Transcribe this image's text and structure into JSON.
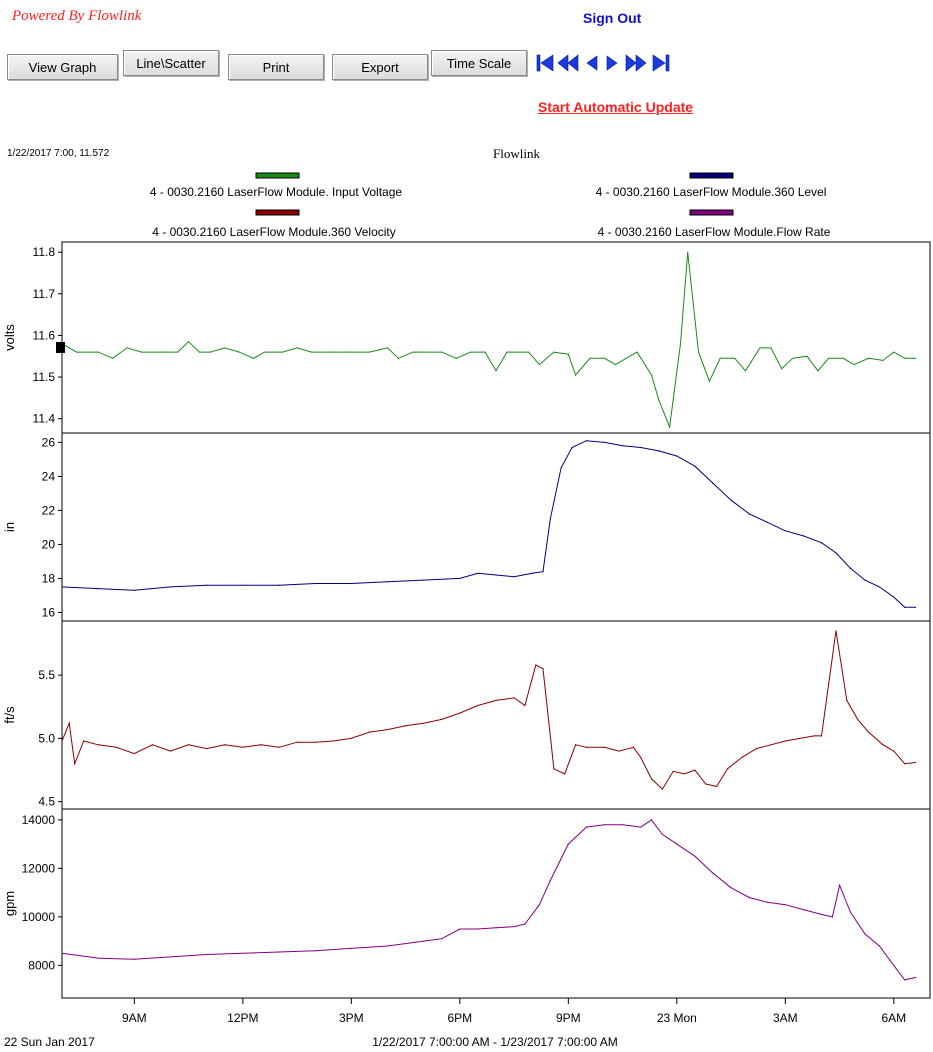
{
  "header": {
    "powered_by": "Powered By Flowlink",
    "sign_out": "Sign Out",
    "auto_update": "Start Automatic Update"
  },
  "toolbar": {
    "buttons": [
      {
        "label": "View Graph"
      },
      {
        "label": "Line\\Scatter"
      },
      {
        "label": "Print"
      },
      {
        "label": "Export"
      },
      {
        "label": "Time Scale"
      }
    ],
    "nav_icons": [
      "first-icon",
      "rewind-icon",
      "step-back-icon",
      "step-forward-icon",
      "fast-forward-icon",
      "last-icon"
    ]
  },
  "cursor_readout": "1/22/2017 7:00, 11.572",
  "chart_data": {
    "type": "line",
    "title": "Flowlink",
    "legend": [
      {
        "name": "4 - 0030.2160 LaserFlow Module. Input Voltage",
        "color": "#1a8a1a"
      },
      {
        "name": "4 - 0030.2160 LaserFlow Module.360 Level",
        "color": "#00007a"
      },
      {
        "name": "4 - 0030.2160 LaserFlow Module.360 Velocity",
        "color": "#8a0000"
      },
      {
        "name": "4 - 0030.2160 LaserFlow Module.Flow Rate",
        "color": "#800080"
      }
    ],
    "x_range": [
      "2017-01-22T07:00",
      "2017-01-23T07:00"
    ],
    "x_ticks": [
      {
        "label": "9AM",
        "hour": 9
      },
      {
        "label": "12PM",
        "hour": 12
      },
      {
        "label": "3PM",
        "hour": 15
      },
      {
        "label": "6PM",
        "hour": 18
      },
      {
        "label": "9PM",
        "hour": 21
      },
      {
        "label": "23 Mon",
        "hour": 24
      },
      {
        "label": "3AM",
        "hour": 27
      },
      {
        "label": "6AM",
        "hour": 30
      }
    ],
    "x_start_label": "22 Sun Jan 2017",
    "x_range_label": "1/22/2017 7:00:00 AM - 1/23/2017 7:00:00 AM",
    "panels": [
      {
        "name": "Input Voltage",
        "ylabel": "volts",
        "ylim": [
          11.38,
          11.81
        ],
        "yticks": [
          "11.4",
          "11.5",
          "11.6",
          "11.7",
          "11.8"
        ],
        "color": "#1a8a1a",
        "points": [
          [
            7.0,
            11.58
          ],
          [
            7.4,
            11.56
          ],
          [
            8.0,
            11.56
          ],
          [
            8.4,
            11.545
          ],
          [
            8.8,
            11.57
          ],
          [
            9.2,
            11.56
          ],
          [
            9.8,
            11.56
          ],
          [
            10.2,
            11.56
          ],
          [
            10.5,
            11.585
          ],
          [
            10.8,
            11.56
          ],
          [
            11.1,
            11.56
          ],
          [
            11.5,
            11.57
          ],
          [
            11.9,
            11.56
          ],
          [
            12.3,
            11.545
          ],
          [
            12.6,
            11.56
          ],
          [
            13.1,
            11.56
          ],
          [
            13.5,
            11.57
          ],
          [
            13.9,
            11.56
          ],
          [
            14.5,
            11.56
          ],
          [
            15.0,
            11.56
          ],
          [
            15.5,
            11.56
          ],
          [
            16.0,
            11.57
          ],
          [
            16.3,
            11.545
          ],
          [
            16.7,
            11.56
          ],
          [
            17.0,
            11.56
          ],
          [
            17.5,
            11.56
          ],
          [
            17.9,
            11.545
          ],
          [
            18.3,
            11.56
          ],
          [
            18.7,
            11.56
          ],
          [
            19.0,
            11.515
          ],
          [
            19.3,
            11.56
          ],
          [
            19.9,
            11.56
          ],
          [
            20.2,
            11.53
          ],
          [
            20.6,
            11.56
          ],
          [
            21.0,
            11.555
          ],
          [
            21.2,
            11.505
          ],
          [
            21.6,
            11.545
          ],
          [
            22.0,
            11.545
          ],
          [
            22.3,
            11.53
          ],
          [
            22.9,
            11.56
          ],
          [
            23.3,
            11.505
          ],
          [
            23.5,
            11.445
          ],
          [
            23.8,
            11.38
          ],
          [
            24.1,
            11.58
          ],
          [
            24.3,
            11.8
          ],
          [
            24.6,
            11.56
          ],
          [
            24.9,
            11.49
          ],
          [
            25.2,
            11.545
          ],
          [
            25.6,
            11.545
          ],
          [
            25.9,
            11.515
          ],
          [
            26.3,
            11.57
          ],
          [
            26.6,
            11.57
          ],
          [
            26.9,
            11.52
          ],
          [
            27.2,
            11.545
          ],
          [
            27.6,
            11.55
          ],
          [
            27.9,
            11.515
          ],
          [
            28.2,
            11.545
          ],
          [
            28.6,
            11.545
          ],
          [
            28.9,
            11.53
          ],
          [
            29.3,
            11.545
          ],
          [
            29.7,
            11.54
          ],
          [
            30.0,
            11.56
          ],
          [
            30.3,
            11.545
          ],
          [
            30.6,
            11.545
          ]
        ]
      },
      {
        "name": "360 Level",
        "ylabel": "in",
        "ylim": [
          15.85,
          26.2
        ],
        "yticks": [
          "16",
          "18",
          "20",
          "22",
          "24",
          "26"
        ],
        "color": "#00007a",
        "points": [
          [
            7.0,
            17.5
          ],
          [
            8.0,
            17.4
          ],
          [
            9.0,
            17.3
          ],
          [
            10.0,
            17.5
          ],
          [
            11.0,
            17.6
          ],
          [
            12.0,
            17.6
          ],
          [
            13.0,
            17.6
          ],
          [
            14.0,
            17.7
          ],
          [
            15.0,
            17.7
          ],
          [
            16.0,
            17.8
          ],
          [
            17.0,
            17.9
          ],
          [
            18.0,
            18.0
          ],
          [
            18.5,
            18.3
          ],
          [
            19.0,
            18.2
          ],
          [
            19.5,
            18.1
          ],
          [
            20.0,
            18.3
          ],
          [
            20.3,
            18.4
          ],
          [
            20.5,
            21.5
          ],
          [
            20.8,
            24.5
          ],
          [
            21.1,
            25.7
          ],
          [
            21.5,
            26.1
          ],
          [
            22.0,
            26.0
          ],
          [
            22.5,
            25.8
          ],
          [
            23.0,
            25.7
          ],
          [
            23.5,
            25.5
          ],
          [
            24.0,
            25.2
          ],
          [
            24.5,
            24.6
          ],
          [
            25.0,
            23.6
          ],
          [
            25.5,
            22.6
          ],
          [
            26.0,
            21.8
          ],
          [
            26.5,
            21.3
          ],
          [
            27.0,
            20.8
          ],
          [
            27.5,
            20.5
          ],
          [
            28.0,
            20.1
          ],
          [
            28.4,
            19.5
          ],
          [
            28.8,
            18.6
          ],
          [
            29.2,
            17.9
          ],
          [
            29.6,
            17.5
          ],
          [
            30.0,
            16.9
          ],
          [
            30.3,
            16.3
          ],
          [
            30.6,
            16.3
          ]
        ]
      },
      {
        "name": "360 Velocity",
        "ylabel": "ft/s",
        "ylim": [
          4.49,
          5.88
        ],
        "yticks": [
          "4.5",
          "5.0",
          "5.5"
        ],
        "color": "#8a0000",
        "points": [
          [
            7.0,
            4.98
          ],
          [
            7.2,
            5.12
          ],
          [
            7.35,
            4.8
          ],
          [
            7.6,
            4.98
          ],
          [
            8.0,
            4.95
          ],
          [
            8.5,
            4.93
          ],
          [
            9.0,
            4.88
          ],
          [
            9.5,
            4.95
          ],
          [
            10.0,
            4.9
          ],
          [
            10.5,
            4.95
          ],
          [
            11.0,
            4.92
          ],
          [
            11.5,
            4.95
          ],
          [
            12.0,
            4.93
          ],
          [
            12.5,
            4.95
          ],
          [
            13.0,
            4.93
          ],
          [
            13.5,
            4.97
          ],
          [
            14.0,
            4.97
          ],
          [
            14.5,
            4.98
          ],
          [
            15.0,
            5.0
          ],
          [
            15.5,
            5.05
          ],
          [
            16.0,
            5.07
          ],
          [
            16.5,
            5.1
          ],
          [
            17.0,
            5.12
          ],
          [
            17.5,
            5.15
          ],
          [
            18.0,
            5.2
          ],
          [
            18.5,
            5.26
          ],
          [
            19.0,
            5.3
          ],
          [
            19.5,
            5.32
          ],
          [
            19.8,
            5.26
          ],
          [
            20.1,
            5.58
          ],
          [
            20.3,
            5.55
          ],
          [
            20.6,
            4.76
          ],
          [
            20.9,
            4.72
          ],
          [
            21.2,
            4.95
          ],
          [
            21.5,
            4.93
          ],
          [
            22.0,
            4.93
          ],
          [
            22.4,
            4.9
          ],
          [
            22.8,
            4.93
          ],
          [
            23.0,
            4.85
          ],
          [
            23.3,
            4.68
          ],
          [
            23.6,
            4.6
          ],
          [
            23.9,
            4.74
          ],
          [
            24.2,
            4.72
          ],
          [
            24.5,
            4.75
          ],
          [
            24.8,
            4.64
          ],
          [
            25.1,
            4.62
          ],
          [
            25.4,
            4.76
          ],
          [
            25.8,
            4.85
          ],
          [
            26.2,
            4.92
          ],
          [
            26.6,
            4.95
          ],
          [
            27.0,
            4.98
          ],
          [
            27.4,
            5.0
          ],
          [
            27.8,
            5.02
          ],
          [
            28.0,
            5.02
          ],
          [
            28.4,
            5.85
          ],
          [
            28.7,
            5.3
          ],
          [
            29.0,
            5.15
          ],
          [
            29.3,
            5.05
          ],
          [
            29.7,
            4.95
          ],
          [
            30.0,
            4.9
          ],
          [
            30.3,
            4.8
          ],
          [
            30.6,
            4.81
          ]
        ]
      },
      {
        "name": "Flow Rate",
        "ylabel": "gpm",
        "ylim": [
          7150,
          14200
        ],
        "yticks": [
          "8000",
          "10000",
          "12000",
          "14000"
        ],
        "color": "#800080",
        "points": [
          [
            7.0,
            8500
          ],
          [
            8.0,
            8300
          ],
          [
            9.0,
            8250
          ],
          [
            10.0,
            8350
          ],
          [
            11.0,
            8450
          ],
          [
            12.0,
            8500
          ],
          [
            13.0,
            8550
          ],
          [
            14.0,
            8600
          ],
          [
            15.0,
            8700
          ],
          [
            16.0,
            8800
          ],
          [
            17.0,
            9000
          ],
          [
            17.5,
            9100
          ],
          [
            18.0,
            9500
          ],
          [
            18.5,
            9500
          ],
          [
            19.0,
            9550
          ],
          [
            19.5,
            9600
          ],
          [
            19.8,
            9700
          ],
          [
            20.2,
            10500
          ],
          [
            20.5,
            11500
          ],
          [
            21.0,
            13000
          ],
          [
            21.5,
            13700
          ],
          [
            22.0,
            13800
          ],
          [
            22.5,
            13800
          ],
          [
            23.0,
            13700
          ],
          [
            23.3,
            14000
          ],
          [
            23.6,
            13400
          ],
          [
            24.0,
            13000
          ],
          [
            24.5,
            12500
          ],
          [
            25.0,
            11800
          ],
          [
            25.5,
            11200
          ],
          [
            26.0,
            10800
          ],
          [
            26.5,
            10600
          ],
          [
            27.0,
            10500
          ],
          [
            27.5,
            10300
          ],
          [
            28.0,
            10100
          ],
          [
            28.3,
            10000
          ],
          [
            28.5,
            11300
          ],
          [
            28.8,
            10200
          ],
          [
            29.2,
            9300
          ],
          [
            29.6,
            8800
          ],
          [
            30.0,
            8000
          ],
          [
            30.3,
            7400
          ],
          [
            30.6,
            7500
          ]
        ]
      }
    ]
  }
}
